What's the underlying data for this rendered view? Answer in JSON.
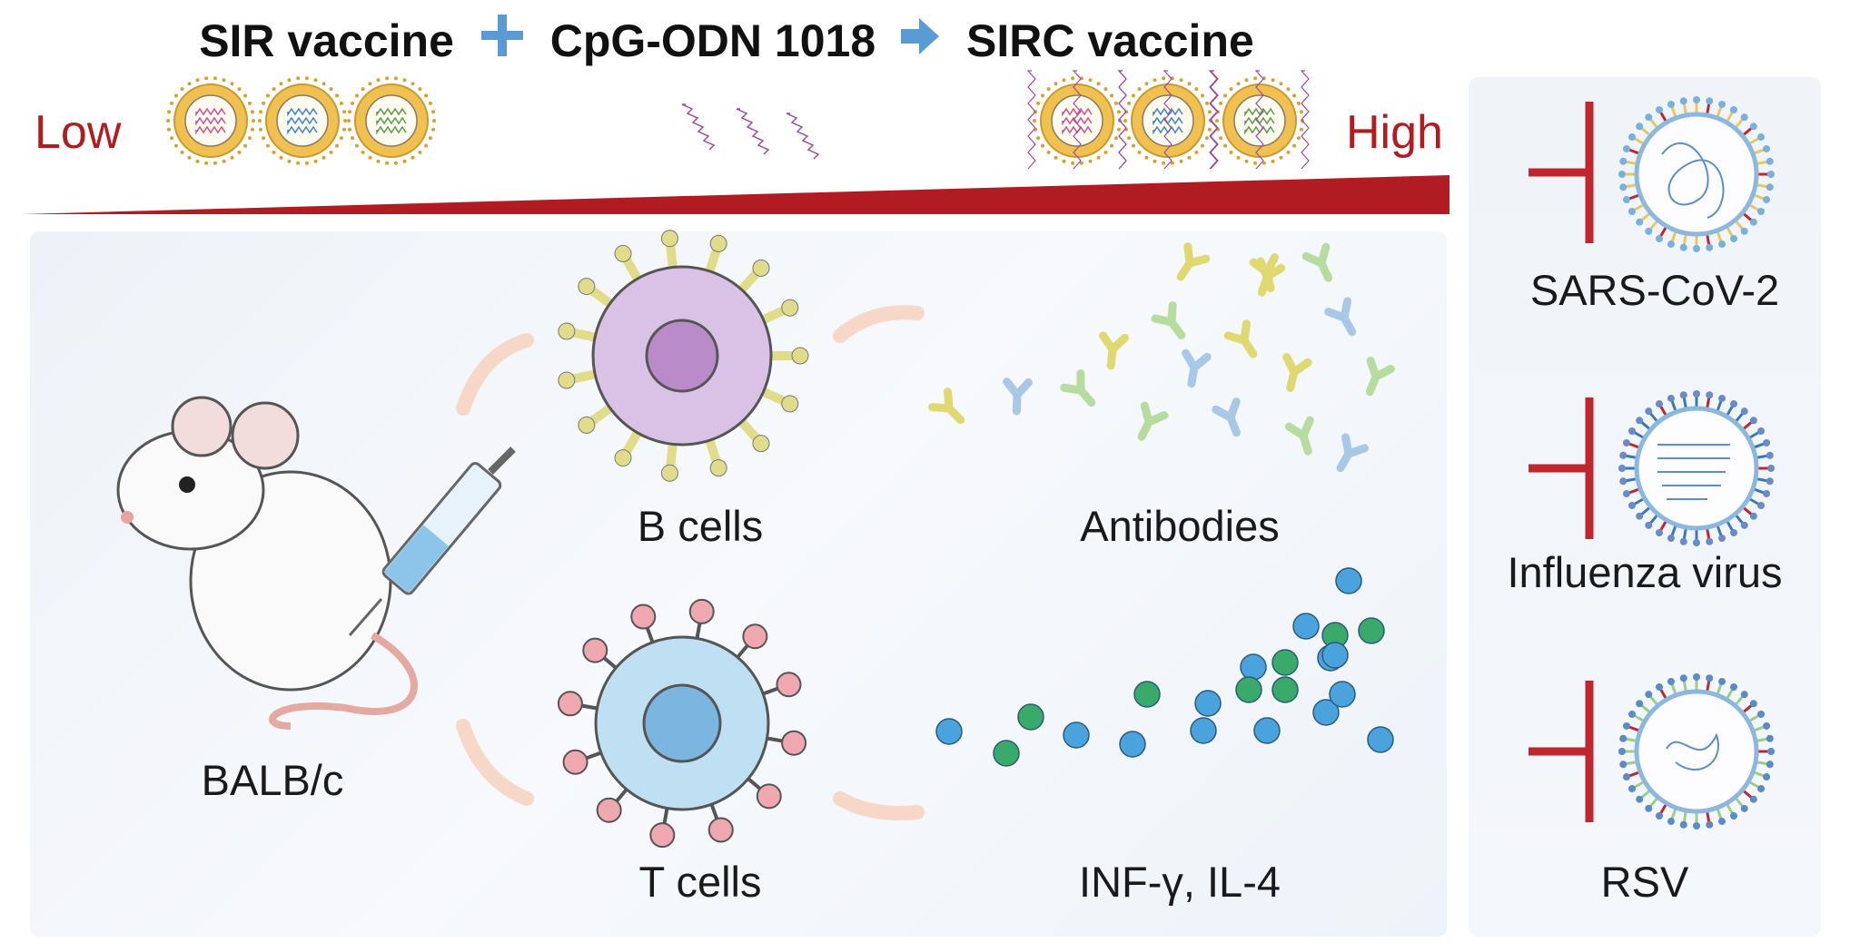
{
  "header": {
    "sir_vaccine": "SIR vaccine",
    "adjuvant": "CpG-ODN 1018",
    "sirc_vaccine": "SIRC vaccine",
    "plus_icon": "plus-icon",
    "arrow_icon": "arrow-right-icon",
    "operator_color": "#5b9bd5"
  },
  "gradient": {
    "low": "Low",
    "high": "High",
    "color": "#b01c22"
  },
  "immune": {
    "host": "BALB/c",
    "b_cells": "B cells",
    "antibodies": "Antibodies",
    "t_cells": "T cells",
    "cytokines": "INF-γ, IL-4"
  },
  "targets": [
    {
      "name": "SARS-CoV-2"
    },
    {
      "name": "Influenza virus"
    },
    {
      "name": "RSV"
    }
  ],
  "colors": {
    "inhibit": "#c0262d",
    "liposome": "#f0c050",
    "bcell": "#d9c2e6",
    "tcell": "#bfe0f2"
  }
}
